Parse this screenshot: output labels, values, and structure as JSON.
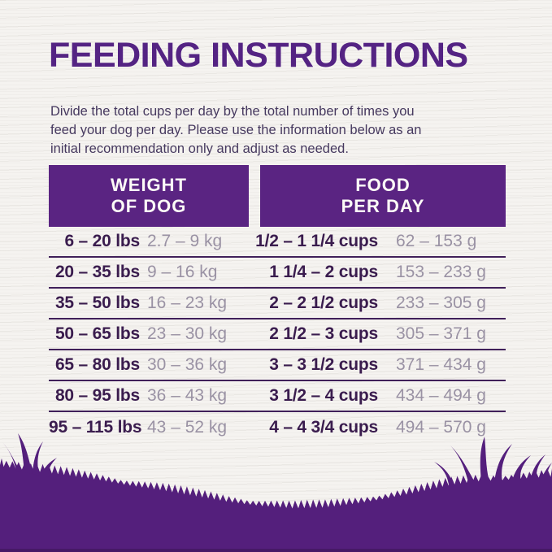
{
  "page": {
    "title": "FEEDING INSTRUCTIONS",
    "intro_lines": [
      "Divide the total cups per day by the total number of times you",
      "feed your dog per day. Please use the information below as an",
      "initial recommendation only and adjust as needed."
    ]
  },
  "table": {
    "headers": [
      {
        "line1": "WEIGHT",
        "line2": "OF DOG"
      },
      {
        "line1": "FOOD",
        "line2": "PER DAY"
      }
    ],
    "rows": [
      {
        "lbs": "6 – 20 lbs",
        "kg": "2.7 – 9 kg",
        "cups": "1/2 – 1 1/4 cups",
        "grams": "62 – 153 g"
      },
      {
        "lbs": "20 – 35 lbs",
        "kg": "9 – 16 kg",
        "cups": "1 1/4 – 2 cups",
        "grams": "153 – 233 g"
      },
      {
        "lbs": "35 – 50 lbs",
        "kg": "16 – 23 kg",
        "cups": "2 – 2 1/2 cups",
        "grams": "233 – 305 g"
      },
      {
        "lbs": "50 – 65 lbs",
        "kg": "23 – 30 kg",
        "cups": "2 1/2 – 3 cups",
        "grams": "305 – 371 g"
      },
      {
        "lbs": "65 – 80 lbs",
        "kg": "30 – 36 kg",
        "cups": "3 – 3 1/2 cups",
        "grams": "371 – 434 g"
      },
      {
        "lbs": "80 – 95 lbs",
        "kg": "36 – 43 kg",
        "cups": "3 1/2 – 4 cups",
        "grams": "434 – 494 g"
      },
      {
        "lbs": "95 – 115 lbs",
        "kg": "43 – 52 kg",
        "cups": "4 – 4 3/4 cups",
        "grams": "494 – 570 g"
      }
    ]
  },
  "footer": {
    "decoration": "purple grass hill silhouette"
  },
  "colors": {
    "brand_purple": "#5a2482",
    "title_purple": "#542383",
    "dark_text": "#3a1c4e",
    "muted_text": "#9a92a4",
    "body_text": "#46395f",
    "divider": "#40205a",
    "header_text": "#fdfbf7",
    "grass": "#541f7c",
    "background": "#f5f3f0"
  }
}
